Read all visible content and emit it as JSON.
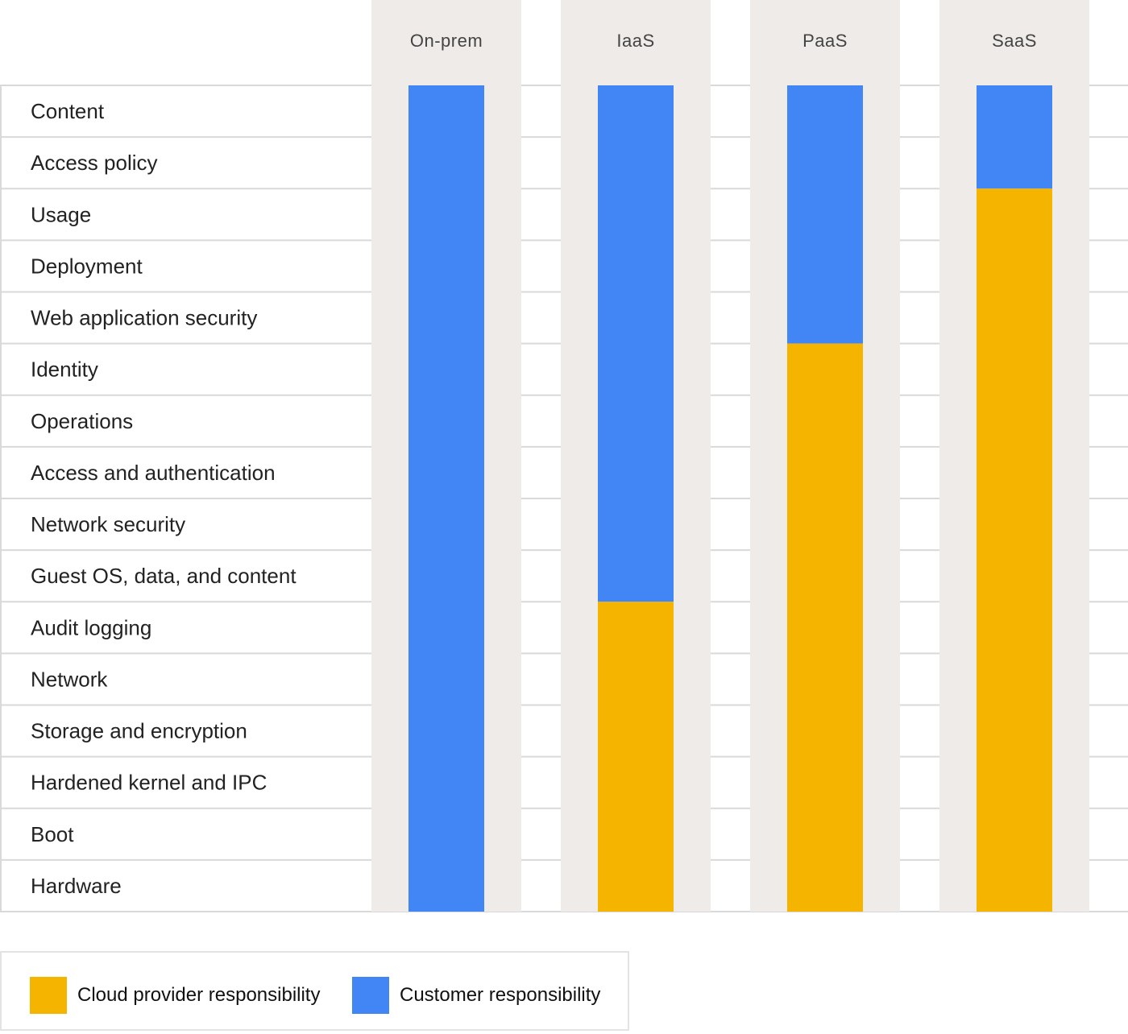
{
  "chart_data": {
    "type": "stacked-bar",
    "layers": [
      "Content",
      "Access policy",
      "Usage",
      "Deployment",
      "Web application security",
      "Identity",
      "Operations",
      "Access and authentication",
      "Network security",
      "Guest OS, data, and content",
      "Audit logging",
      "Network",
      "Storage and encryption",
      "Hardened kernel and IPC",
      "Boot",
      "Hardware"
    ],
    "models": [
      {
        "name": "On-prem",
        "customer_layers": 16,
        "provider_layers": 0
      },
      {
        "name": "IaaS",
        "customer_layers": 10,
        "provider_layers": 6
      },
      {
        "name": "PaaS",
        "customer_layers": 5,
        "provider_layers": 11
      },
      {
        "name": "SaaS",
        "customer_layers": 2,
        "provider_layers": 14
      }
    ],
    "legend": {
      "provider": "Cloud provider responsibility",
      "customer": "Customer responsibility"
    },
    "colors": {
      "provider": "#F4B400",
      "customer": "#4285F4",
      "column_band": "#EEEBE8",
      "grid": "#d9d9d9"
    }
  }
}
